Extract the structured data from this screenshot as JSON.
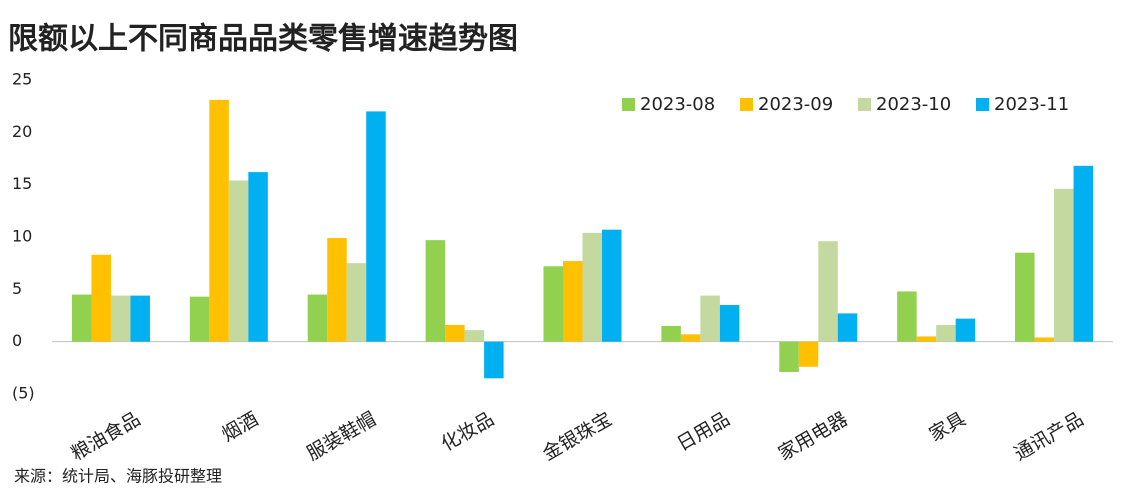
{
  "chart_data": {
    "type": "bar",
    "title": "限额以上不同商品品类零售增速趋势图",
    "source": "来源：统计局、海豚投研整理",
    "categories": [
      "粮油食品",
      "烟酒",
      "服装鞋帽",
      "化妆品",
      "金银珠宝",
      "日用品",
      "家用电器",
      "家具",
      "通讯产品"
    ],
    "series": [
      {
        "name": "2023-08",
        "color": "#92d050",
        "values": [
          4.5,
          4.3,
          4.5,
          9.7,
          7.2,
          1.5,
          -2.9,
          4.8,
          8.5
        ]
      },
      {
        "name": "2023-09",
        "color": "#ffc000",
        "values": [
          8.3,
          23.1,
          9.9,
          1.6,
          7.7,
          0.7,
          -2.4,
          0.5,
          0.4
        ]
      },
      {
        "name": "2023-10",
        "color": "#c4d99f",
        "values": [
          4.4,
          15.4,
          7.5,
          1.1,
          10.4,
          4.4,
          9.6,
          1.6,
          14.6
        ]
      },
      {
        "name": "2023-11",
        "color": "#00b0f0",
        "values": [
          4.4,
          16.2,
          22.0,
          -3.5,
          10.7,
          3.5,
          2.7,
          2.2,
          16.8
        ]
      }
    ],
    "ylim": [
      -5,
      25
    ],
    "yticks": [
      {
        "value": -5,
        "label": "(5)"
      },
      0,
      5,
      10,
      15,
      20,
      25
    ],
    "negative_tick_color": "#c00000",
    "grid": false,
    "legend": "top-right"
  }
}
